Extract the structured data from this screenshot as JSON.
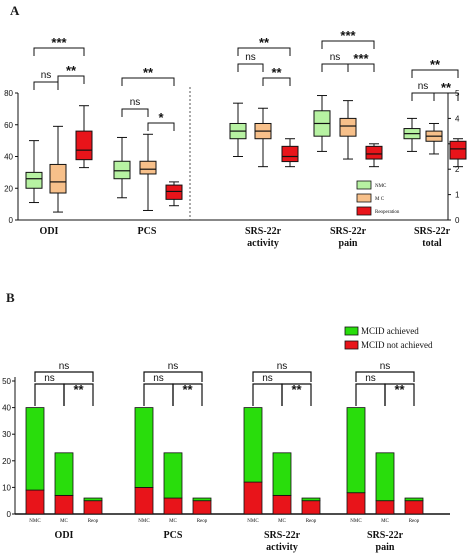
{
  "chart_data": [
    {
      "panel": "A",
      "type": "box",
      "left_axis_ticks": [
        "0",
        "20",
        "40",
        "60",
        "80"
      ],
      "left_ylim": [
        0,
        80
      ],
      "right_axis_ticks": [
        "0",
        "1",
        "2",
        "3",
        "4",
        "5"
      ],
      "right_ylim": [
        0,
        5
      ],
      "legend": [
        {
          "label": "NMC",
          "color": "#b7f2a2"
        },
        {
          "label": "M C",
          "color": "#f7c08a"
        },
        {
          "label": "Reoperation",
          "color": "#e8141a"
        }
      ],
      "groups": [
        {
          "category": [
            "ODI"
          ],
          "axis": "left",
          "boxes": [
            {
              "group": "NMC",
              "min": 11,
              "q1": 20,
              "median": 26,
              "q3": 30,
              "max": 50
            },
            {
              "group": "M C",
              "min": 5,
              "q1": 17,
              "median": 24,
              "q3": 35,
              "max": 59
            },
            {
              "group": "Reoperation",
              "min": 33,
              "q1": 38,
              "median": 44,
              "q3": 56,
              "max": 72
            }
          ],
          "significance": [
            {
              "text": "ns",
              "from": 0,
              "to": 1
            },
            {
              "text": "**",
              "from": 1,
              "to": 2
            },
            {
              "text": "***",
              "from": 0,
              "to": 2
            }
          ]
        },
        {
          "category": [
            "PCS"
          ],
          "axis": "left",
          "boxes": [
            {
              "group": "NMC",
              "min": 14,
              "q1": 26,
              "median": 31,
              "q3": 37,
              "max": 52
            },
            {
              "group": "M C",
              "min": 6,
              "q1": 29,
              "median": 32,
              "q3": 37,
              "max": 54
            },
            {
              "group": "Reoperation",
              "min": 9,
              "q1": 13,
              "median": 18,
              "q3": 22,
              "max": 24
            }
          ],
          "significance": [
            {
              "text": "ns",
              "from": 0,
              "to": 1
            },
            {
              "text": "*",
              "from": 1,
              "to": 2
            },
            {
              "text": "**",
              "from": 0,
              "to": 2
            }
          ]
        },
        {
          "category": [
            "SRS-22r",
            "activity"
          ],
          "axis": "right",
          "boxes": [
            {
              "group": "NMC",
              "min": 2.5,
              "q1": 3.2,
              "median": 3.5,
              "q3": 3.8,
              "max": 4.6
            },
            {
              "group": "M C",
              "min": 2.1,
              "q1": 3.2,
              "median": 3.5,
              "q3": 3.8,
              "max": 4.4
            },
            {
              "group": "Reoperation",
              "min": 2.1,
              "q1": 2.3,
              "median": 2.5,
              "q3": 2.9,
              "max": 3.2
            }
          ],
          "significance": [
            {
              "text": "ns",
              "from": 0,
              "to": 1
            },
            {
              "text": "**",
              "from": 1,
              "to": 2
            },
            {
              "text": "**",
              "from": 0,
              "to": 2
            }
          ]
        },
        {
          "category": [
            "SRS-22r",
            "pain"
          ],
          "axis": "right",
          "boxes": [
            {
              "group": "NMC",
              "min": 2.7,
              "q1": 3.3,
              "median": 3.8,
              "q3": 4.3,
              "max": 4.9
            },
            {
              "group": "M C",
              "min": 2.4,
              "q1": 3.3,
              "median": 3.7,
              "q3": 4.0,
              "max": 4.7
            },
            {
              "group": "Reoperation",
              "min": 2.1,
              "q1": 2.4,
              "median": 2.6,
              "q3": 2.9,
              "max": 3.0
            }
          ],
          "significance": [
            {
              "text": "ns",
              "from": 0,
              "to": 1
            },
            {
              "text": "***",
              "from": 1,
              "to": 2
            },
            {
              "text": "***",
              "from": 0,
              "to": 2
            }
          ]
        },
        {
          "category": [
            "SRS-22r",
            "total"
          ],
          "axis": "right",
          "boxes": [
            {
              "group": "NMC",
              "min": 2.7,
              "q1": 3.2,
              "median": 3.4,
              "q3": 3.6,
              "max": 4.0
            },
            {
              "group": "M C",
              "min": 2.6,
              "q1": 3.1,
              "median": 3.3,
              "q3": 3.5,
              "max": 3.8
            },
            {
              "group": "Reoperation",
              "min": 2.1,
              "q1": 2.4,
              "median": 2.8,
              "q3": 3.1,
              "max": 3.2
            }
          ],
          "significance": [
            {
              "text": "ns",
              "from": 0,
              "to": 1
            },
            {
              "text": "**",
              "from": 1,
              "to": 2
            },
            {
              "text": "**",
              "from": 0,
              "to": 2
            }
          ]
        }
      ]
    },
    {
      "panel": "B",
      "type": "stacked_bar",
      "y_ticks": [
        "0",
        "10",
        "20",
        "30",
        "40",
        "50"
      ],
      "ylim": [
        0,
        50
      ],
      "series": [
        {
          "name": "MCID not achieved",
          "color": "#e8141a"
        },
        {
          "name": "MCID achieved",
          "color": "#29dd0c"
        }
      ],
      "bar_labels": [
        "NMC",
        "MC",
        "Reop"
      ],
      "groups": [
        {
          "category": [
            "ODI"
          ],
          "bars": [
            {
              "label": "NMC",
              "not_achieved": 9,
              "achieved": 31
            },
            {
              "label": "MC",
              "not_achieved": 7,
              "achieved": 16
            },
            {
              "label": "Reop",
              "not_achieved": 5,
              "achieved": 1
            }
          ],
          "significance": [
            {
              "text": "ns",
              "from": 0,
              "to": 1
            },
            {
              "text": "**",
              "from": 1,
              "to": 2
            },
            {
              "text": "ns",
              "from": 0,
              "to": 2
            }
          ]
        },
        {
          "category": [
            "PCS"
          ],
          "bars": [
            {
              "label": "NMC",
              "not_achieved": 10,
              "achieved": 30
            },
            {
              "label": "MC",
              "not_achieved": 6,
              "achieved": 17
            },
            {
              "label": "Reop",
              "not_achieved": 5,
              "achieved": 1
            }
          ],
          "significance": [
            {
              "text": "ns",
              "from": 0,
              "to": 1
            },
            {
              "text": "**",
              "from": 1,
              "to": 2
            },
            {
              "text": "ns",
              "from": 0,
              "to": 2
            }
          ]
        },
        {
          "category": [
            "SRS-22r",
            "activity"
          ],
          "bars": [
            {
              "label": "NMC",
              "not_achieved": 12,
              "achieved": 28
            },
            {
              "label": "MC",
              "not_achieved": 7,
              "achieved": 16
            },
            {
              "label": "Reop",
              "not_achieved": 5,
              "achieved": 1
            }
          ],
          "significance": [
            {
              "text": "ns",
              "from": 0,
              "to": 1
            },
            {
              "text": "**",
              "from": 1,
              "to": 2
            },
            {
              "text": "ns",
              "from": 0,
              "to": 2
            }
          ]
        },
        {
          "category": [
            "SRS-22r",
            "pain"
          ],
          "bars": [
            {
              "label": "NMC",
              "not_achieved": 8,
              "achieved": 32
            },
            {
              "label": "MC",
              "not_achieved": 5,
              "achieved": 18
            },
            {
              "label": "Reop",
              "not_achieved": 5,
              "achieved": 1
            }
          ],
          "significance": [
            {
              "text": "ns",
              "from": 0,
              "to": 1
            },
            {
              "text": "**",
              "from": 1,
              "to": 2
            },
            {
              "text": "ns",
              "from": 0,
              "to": 2
            }
          ]
        }
      ]
    }
  ]
}
